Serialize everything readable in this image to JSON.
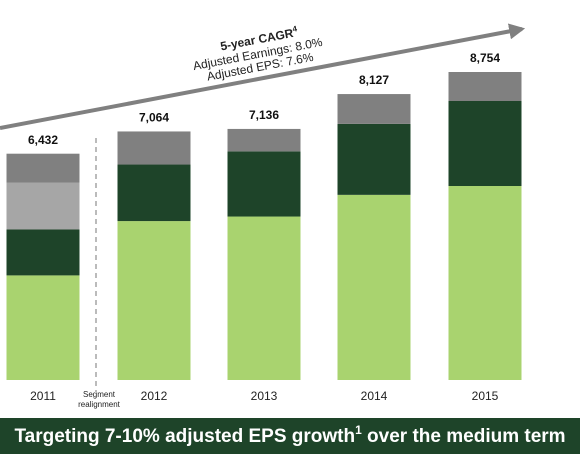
{
  "chart_data": {
    "type": "stacked_bar",
    "categories": [
      "2011",
      "2012",
      "2013",
      "2014",
      "2015"
    ],
    "series": [
      {
        "color": "#a9d36f",
        "values": [
          2973,
          4517,
          4646,
          5262,
          5514
        ]
      },
      {
        "color": "#1e4429",
        "values": [
          1305,
          1607,
          1852,
          2017,
          2416
        ]
      },
      {
        "color": "#a6a6a6",
        "values": [
          1335,
          null,
          null,
          null,
          null
        ]
      },
      {
        "color": "#808080",
        "values": [
          819,
          940,
          638,
          848,
          824
        ]
      }
    ],
    "totals": [
      6432,
      7064,
      7136,
      8127,
      8754
    ],
    "total_labels": [
      "6,432",
      "7,064",
      "7,136",
      "8,127",
      "8,754"
    ],
    "annotation": {
      "title": "5-year CAGR",
      "title_sup": "4",
      "lines": [
        "Adjusted Earnings: 8.0%",
        "Adjusted EPS: 7.6%"
      ]
    },
    "divider_label": [
      "Segment",
      "realignment"
    ],
    "banner": {
      "text_before": "Targeting 7-10% adjusted EPS growth",
      "sup": "1",
      "text_after": " over the medium term"
    }
  }
}
